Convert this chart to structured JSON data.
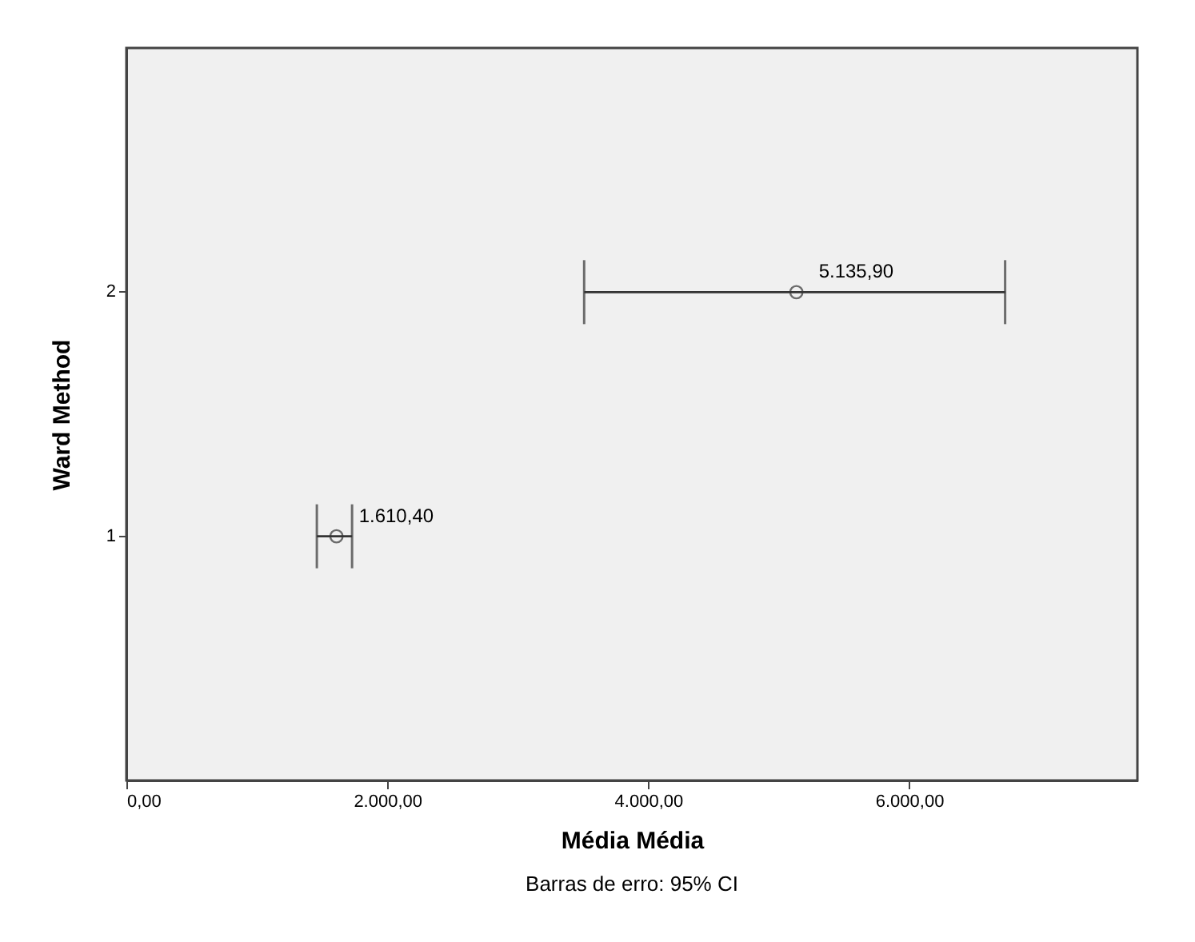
{
  "chart_data": {
    "type": "scatter",
    "orientation": "horizontal",
    "xlabel": "Média Média",
    "ylabel": "Ward Method",
    "categories": [
      "2",
      "1"
    ],
    "values": [
      5135.9,
      1610.4
    ],
    "errors": [
      [
        3509,
        6736
      ],
      [
        1460,
        1730
      ]
    ],
    "value_labels": [
      "5.135,90",
      "1.610,40"
    ],
    "marker": "circle",
    "color": "#333333",
    "xlim": [
      0,
      7750
    ],
    "xticks": [
      {
        "value": 0,
        "label": "0,00"
      },
      {
        "value": 2000,
        "label": "2.000,00"
      },
      {
        "value": 4000,
        "label": "4.000,00"
      },
      {
        "value": 6000,
        "label": "6.000,00"
      }
    ],
    "grid": false,
    "legend": false,
    "annotations": [
      "Barras de erro: 95% CI"
    ]
  }
}
